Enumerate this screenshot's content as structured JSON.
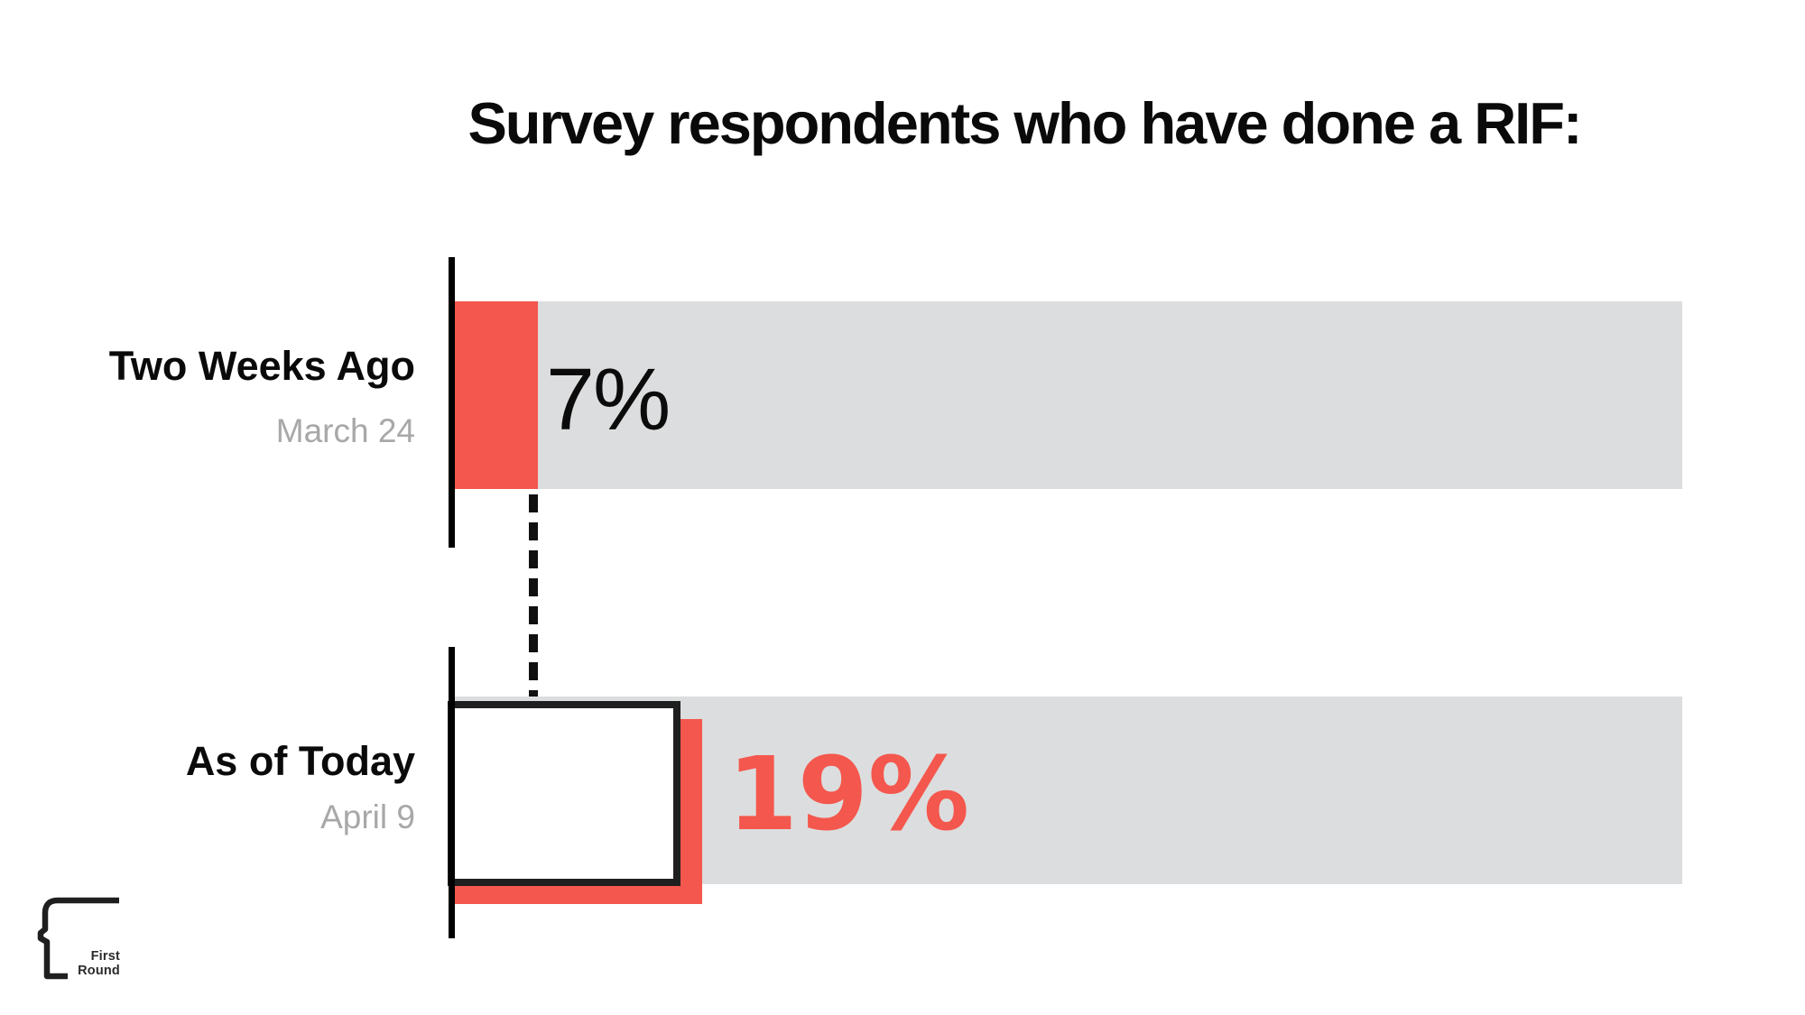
{
  "title": "Survey respondents who have done a RIF:",
  "rows": [
    {
      "label": "Two Weeks Ago",
      "date": "March 24",
      "value": 7,
      "value_label": "7%"
    },
    {
      "label": "As of Today",
      "date": "April 9",
      "value": 19,
      "value_label": "19%"
    }
  ],
  "logo": {
    "line1": "First",
    "line2": "Round"
  },
  "colors": {
    "accent": "#F4574D",
    "track": "#DCDDDE",
    "muted": "#A8A8A8",
    "ink": "#0C0C0C"
  },
  "chart_data": {
    "type": "bar",
    "orientation": "horizontal",
    "title": "Survey respondents who have done a RIF:",
    "categories": [
      "Two Weeks Ago (March 24)",
      "As of Today (April 9)"
    ],
    "values": [
      7,
      19
    ],
    "unit": "%",
    "value_labels": [
      "7%",
      "19%"
    ],
    "xlim": [
      0,
      100
    ],
    "grid": false,
    "legend": false,
    "annotations": [
      "dashed connector from end of 7% bar down to top of 19% bar",
      "19% bar drawn as white box with black outline over red offset shadow"
    ]
  }
}
